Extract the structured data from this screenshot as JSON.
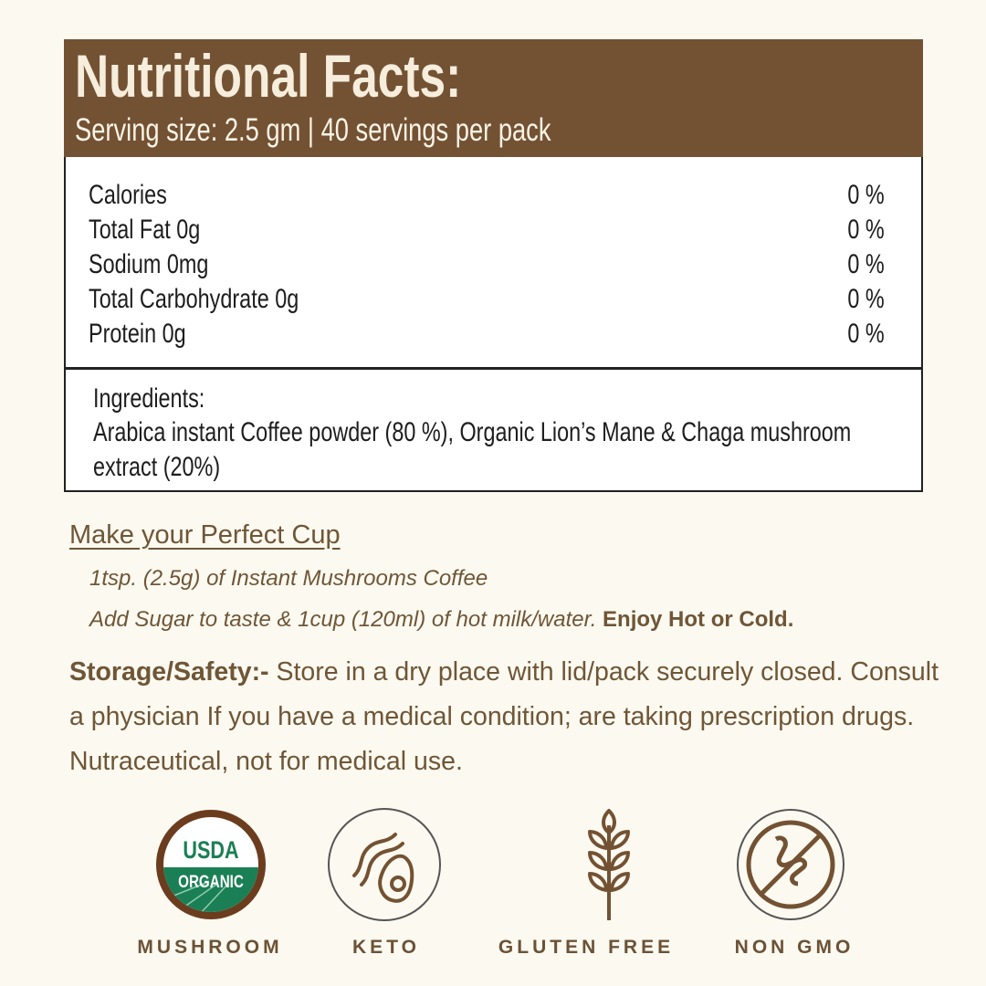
{
  "header": {
    "title": "Nutritional Facts:",
    "serving": "Serving size: 2.5 gm | 40 servings per pack"
  },
  "nutrients": [
    {
      "label": "Calories",
      "value": "0 %"
    },
    {
      "label": "Total Fat 0g",
      "value": "0 %"
    },
    {
      "label": "Sodium 0mg",
      "value": "0 %"
    },
    {
      "label": "Total Carbohydrate 0g",
      "value": "0 %"
    },
    {
      "label": "Protein 0g",
      "value": "0 %"
    }
  ],
  "ingredients": {
    "heading": "Ingredients:",
    "line1": "Arabica  instant Coffee powder (80 %), Organic Lion’s Mane & Chaga mushroom",
    "line2": "extract (20%)"
  },
  "prep": {
    "heading": "Make your Perfect Cup",
    "step1": "1tsp. (2.5g) of Instant Mushrooms Coffee",
    "step2": "Add Sugar to taste & 1cup (120ml) of hot milk/water.",
    "step2_bold": "Enjoy Hot or Cold."
  },
  "storage": {
    "heading": "Storage/Safety:-",
    "text": "Store in a dry place with lid/pack securely closed. Consult a physician If you have a medical condition; are taking prescription drugs. Nutraceutical, not for medical use."
  },
  "badges": [
    {
      "icon": "usda-organic-seal",
      "label": "MUSHROOM",
      "seal_text1": "USDA",
      "seal_text2": "ORGANIC"
    },
    {
      "icon": "bacon-avocado-icon",
      "label": "KETO"
    },
    {
      "icon": "wheat-icon",
      "label": "GLUTEN FREE"
    },
    {
      "icon": "no-gmo-icon",
      "label": "NON GMO"
    }
  ],
  "colors": {
    "brown": "#735233",
    "background": "#fcf9f0",
    "usda_green": "#1a7f55"
  }
}
